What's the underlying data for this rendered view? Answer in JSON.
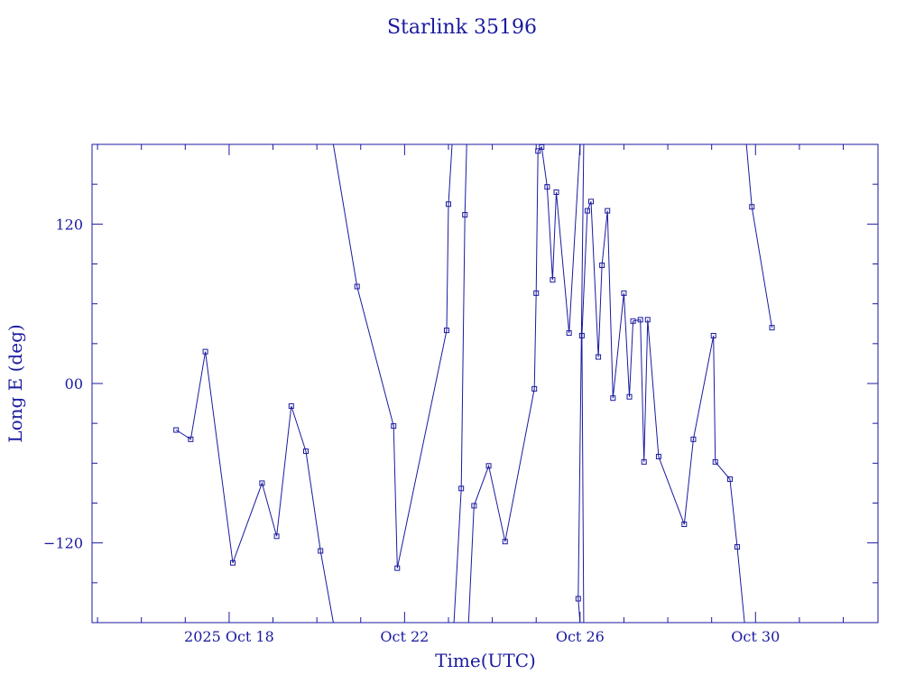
{
  "chart_data": {
    "type": "line",
    "title": "Starlink 35196",
    "xlabel": "Time(UTC)",
    "ylabel": "Long E (deg)",
    "x_unit": "date",
    "xlim": [
      "2025-10-14T21:00",
      "2025-11-01T19:00"
    ],
    "ylim": [
      -180,
      180
    ],
    "x_ticks": [
      {
        "x": "2025-10-18T00:00",
        "label": "2025 Oct 18"
      },
      {
        "x": "2025-10-22T00:00",
        "label": "Oct 22"
      },
      {
        "x": "2025-10-26T00:00",
        "label": "Oct 26"
      },
      {
        "x": "2025-10-30T00:00",
        "label": "Oct 30"
      }
    ],
    "y_ticks": [
      {
        "y": 120,
        "label": "120"
      },
      {
        "y": 0,
        "label": "00"
      },
      {
        "y": -120,
        "label": "−120"
      }
    ],
    "grid": false,
    "legend": "none",
    "color": "#1a1aa0",
    "points": [
      {
        "t": "2025-10-16T19:00",
        "lon": -35
      },
      {
        "t": "2025-10-17T03:00",
        "lon": -42
      },
      {
        "t": "2025-10-17T11:00",
        "lon": 24
      },
      {
        "t": "2025-10-18T02:00",
        "lon": -135
      },
      {
        "t": "2025-10-18T18:00",
        "lon": -75
      },
      {
        "t": "2025-10-19T02:00",
        "lon": -115
      },
      {
        "t": "2025-10-19T10:00",
        "lon": -17
      },
      {
        "t": "2025-10-19T18:00",
        "lon": -51
      },
      {
        "t": "2025-10-20T02:00",
        "lon": -126
      },
      {
        "t": "2025-10-20T09:00",
        "lon": -180,
        "cut": true
      },
      {
        "t": "2025-10-20T09:00",
        "lon": 180,
        "break": true
      },
      {
        "t": "2025-10-20T22:00",
        "lon": 73
      },
      {
        "t": "2025-10-21T18:00",
        "lon": -32
      },
      {
        "t": "2025-10-21T20:00",
        "lon": -139
      },
      {
        "t": "2025-10-22T23:00",
        "lon": 40
      },
      {
        "t": "2025-10-23T00:00",
        "lon": 135
      },
      {
        "t": "2025-10-23T02:00",
        "lon": 180,
        "cut": true
      },
      {
        "t": "2025-10-23T03:00",
        "lon": -180,
        "break": true
      },
      {
        "t": "2025-10-23T07:00",
        "lon": -79
      },
      {
        "t": "2025-10-23T09:00",
        "lon": 127
      },
      {
        "t": "2025-10-23T10:00",
        "lon": 180,
        "cut": true
      },
      {
        "t": "2025-10-23T11:00",
        "lon": -180,
        "break": true
      },
      {
        "t": "2025-10-23T14:00",
        "lon": -92
      },
      {
        "t": "2025-10-23T22:00",
        "lon": -62
      },
      {
        "t": "2025-10-24T07:00",
        "lon": -119
      },
      {
        "t": "2025-10-24T23:00",
        "lon": -4
      },
      {
        "t": "2025-10-25T00:00",
        "lon": 68
      },
      {
        "t": "2025-10-25T01:00",
        "lon": 175
      },
      {
        "t": "2025-10-25T03:00",
        "lon": 178
      },
      {
        "t": "2025-10-25T06:00",
        "lon": 148
      },
      {
        "t": "2025-10-25T09:00",
        "lon": 78
      },
      {
        "t": "2025-10-25T11:00",
        "lon": 144
      },
      {
        "t": "2025-10-25T18:00",
        "lon": 38
      },
      {
        "t": "2025-10-26T00:00",
        "lon": 180,
        "cut": true
      },
      {
        "t": "2025-10-26T00:00",
        "lon": -180,
        "break": true
      },
      {
        "t": "2025-10-25T23:00",
        "lon": -162
      },
      {
        "t": "2025-10-26T02:00",
        "lon": 180,
        "cut": true
      },
      {
        "t": "2025-10-26T02:00",
        "lon": -180,
        "break": true
      },
      {
        "t": "2025-10-26T01:00",
        "lon": 36
      },
      {
        "t": "2025-10-26T04:00",
        "lon": 130
      },
      {
        "t": "2025-10-26T06:00",
        "lon": 137
      },
      {
        "t": "2025-10-26T10:00",
        "lon": 20
      },
      {
        "t": "2025-10-26T12:00",
        "lon": 89
      },
      {
        "t": "2025-10-26T15:00",
        "lon": 130
      },
      {
        "t": "2025-10-26T18:00",
        "lon": -11
      },
      {
        "t": "2025-10-27T00:00",
        "lon": 68
      },
      {
        "t": "2025-10-27T03:00",
        "lon": -10
      },
      {
        "t": "2025-10-27T05:00",
        "lon": 47
      },
      {
        "t": "2025-10-27T09:00",
        "lon": 48
      },
      {
        "t": "2025-10-27T11:00",
        "lon": -59
      },
      {
        "t": "2025-10-27T13:00",
        "lon": 48
      },
      {
        "t": "2025-10-27T19:00",
        "lon": -55
      },
      {
        "t": "2025-10-28T09:00",
        "lon": -106
      },
      {
        "t": "2025-10-28T14:00",
        "lon": -42
      },
      {
        "t": "2025-10-29T01:00",
        "lon": 36
      },
      {
        "t": "2025-10-29T02:00",
        "lon": -59
      },
      {
        "t": "2025-10-29T10:00",
        "lon": -72
      },
      {
        "t": "2025-10-29T14:00",
        "lon": -123
      },
      {
        "t": "2025-10-29T18:00",
        "lon": -180,
        "cut": true
      },
      {
        "t": "2025-10-29T19:00",
        "lon": 180,
        "break": true
      },
      {
        "t": "2025-10-29T22:00",
        "lon": 133
      },
      {
        "t": "2025-10-30T09:00",
        "lon": 42
      }
    ]
  }
}
